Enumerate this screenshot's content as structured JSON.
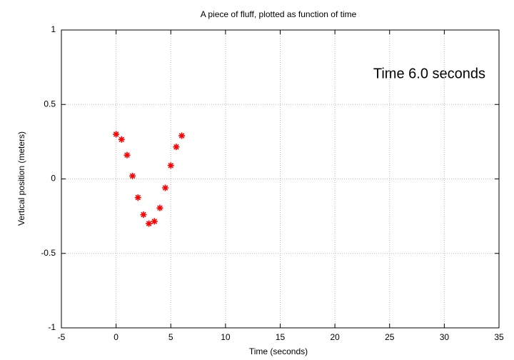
{
  "chart_data": {
    "type": "scatter",
    "title": "A piece of fluff, plotted as function of time",
    "x_label": "Time (seconds)",
    "y_label": "Vertical position (meters)",
    "annotation": "Time  6.0 seconds",
    "x": [
      0,
      0.5,
      1,
      1.5,
      2,
      2.5,
      3,
      3.5,
      4,
      4.5,
      5,
      5.5,
      6
    ],
    "values": [
      0.3,
      0.265,
      0.16,
      0.02,
      -0.125,
      -0.24,
      -0.3,
      -0.285,
      -0.195,
      -0.06,
      0.09,
      0.215,
      0.29
    ],
    "color": "#ff0000",
    "xlim": [
      -5,
      35
    ],
    "xticks": [
      -5,
      0,
      5,
      10,
      15,
      20,
      25,
      30,
      35
    ],
    "ylim": [
      -1,
      1
    ],
    "yticks": [
      -1,
      -0.5,
      0,
      0.5,
      1
    ],
    "grid": true
  }
}
